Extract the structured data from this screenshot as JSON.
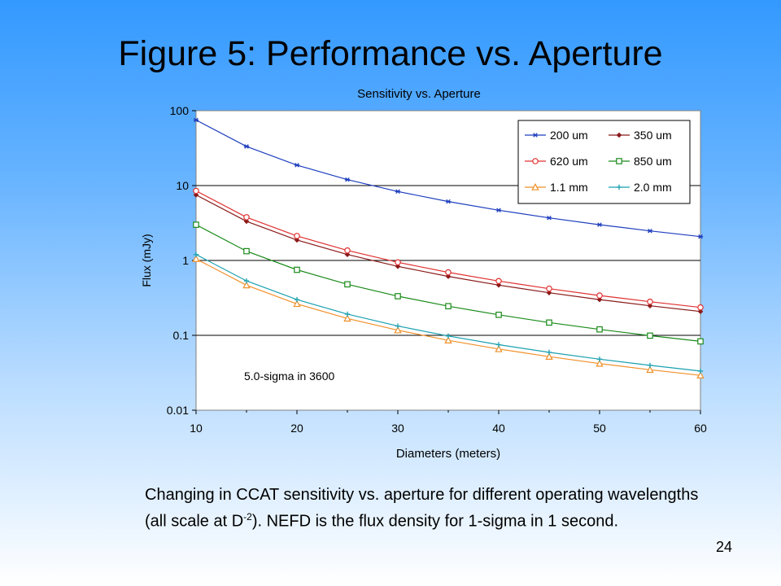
{
  "slide": {
    "title": "Figure 5: Performance vs. Aperture",
    "caption_part1": "Changing in CCAT sensitivity vs. aperture for different operating wavelengths (all scale at D",
    "caption_sup": "-2",
    "caption_part2": ").   NEFD is the flux density for 1-sigma in 1 second.",
    "page_number": "24"
  },
  "chart_data": {
    "type": "line",
    "title": "Sensitivity vs. Aperture",
    "xlabel": "Diameters (meters)",
    "ylabel": "Flux (mJy)",
    "xlim": [
      10,
      60
    ],
    "ylim": [
      0.01,
      100
    ],
    "y_scale": "log",
    "x_ticks": [
      "10",
      "20",
      "30",
      "40",
      "50",
      "60"
    ],
    "y_ticks": [
      "100",
      "10",
      "1",
      "0.1",
      "0.01"
    ],
    "annotation": "5.0-sigma in 3600",
    "legend_position": "top-right",
    "x": [
      10,
      15,
      20,
      25,
      30,
      35,
      40,
      45,
      50,
      55,
      60
    ],
    "series": [
      {
        "name": "200 um",
        "color": "#1f3fbf",
        "marker": "star",
        "values": [
          75,
          33.3,
          18.75,
          12,
          8.33,
          6.12,
          4.69,
          3.7,
          3.0,
          2.48,
          2.08
        ]
      },
      {
        "name": "350 um",
        "color": "#8b1a1a",
        "marker": "diamond",
        "values": [
          7.5,
          3.33,
          1.875,
          1.2,
          0.833,
          0.612,
          0.469,
          0.37,
          0.3,
          0.248,
          0.208
        ]
      },
      {
        "name": "620 um",
        "color": "#e03030",
        "marker": "circle",
        "values": [
          8.5,
          3.78,
          2.125,
          1.36,
          0.944,
          0.694,
          0.531,
          0.42,
          0.34,
          0.281,
          0.236
        ]
      },
      {
        "name": "850 um",
        "color": "#1a8a1a",
        "marker": "square",
        "values": [
          3.0,
          1.33,
          0.75,
          0.48,
          0.333,
          0.245,
          0.188,
          0.148,
          0.12,
          0.099,
          0.083
        ]
      },
      {
        "name": "1.1 mm",
        "color": "#f0902a",
        "marker": "triangle",
        "values": [
          1.05,
          0.467,
          0.263,
          0.168,
          0.117,
          0.0857,
          0.0656,
          0.0519,
          0.042,
          0.0347,
          0.0292
        ]
      },
      {
        "name": "2.0 mm",
        "color": "#1aa0b0",
        "marker": "plus",
        "values": [
          1.2,
          0.533,
          0.3,
          0.192,
          0.133,
          0.098,
          0.075,
          0.0593,
          0.048,
          0.0397,
          0.0333
        ]
      }
    ]
  }
}
